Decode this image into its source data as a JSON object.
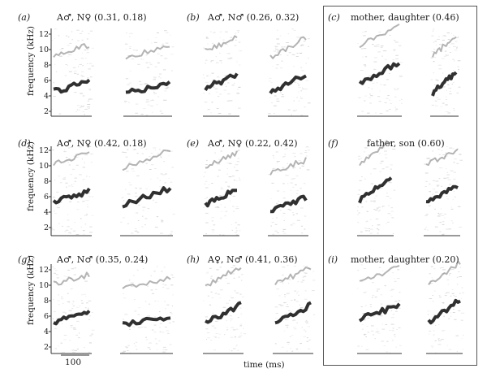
{
  "panels": [
    {
      "label": "(a)",
      "title": "A♂, N♀ (0.31, 0.18)"
    },
    {
      "label": "(b)",
      "title": "A♂, N♂ (0.26, 0.32)"
    },
    {
      "label": "(c)",
      "title": "mother, daughter (0.46)"
    },
    {
      "label": "(d)",
      "title": "A♂, N♀ (0.42, 0.18)"
    },
    {
      "label": "(e)",
      "title": "A♂, N♀ (0.22, 0.42)"
    },
    {
      "label": "(f)",
      "title": "father, son (0.60)"
    },
    {
      "label": "(g)",
      "title": "A♂, N♂ (0.35, 0.24)"
    },
    {
      "label": "(h)",
      "title": "A♀, N♂ (0.41, 0.36)"
    },
    {
      "label": "(i)",
      "title": "mother, daughter (0.20)"
    }
  ],
  "y_axis": {
    "label": "frequency (kHz)",
    "ticks": [
      "12",
      "10",
      "8",
      "6",
      "4",
      "2"
    ]
  },
  "x_axis": {
    "label": "time (ms)",
    "scale_bar_label": "100"
  }
}
